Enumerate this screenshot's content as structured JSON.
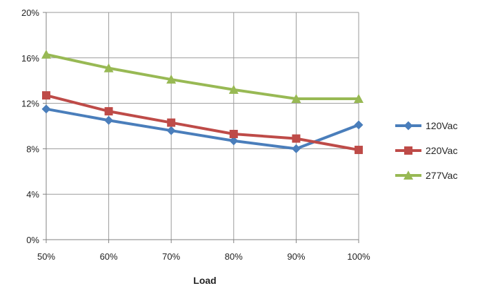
{
  "chart_data": {
    "type": "line",
    "title": "",
    "xlabel": "Load",
    "ylabel": "",
    "categories": [
      "50%",
      "60%",
      "70%",
      "80%",
      "90%",
      "100%"
    ],
    "ylim": [
      0,
      20
    ],
    "yticks": [
      0,
      4,
      8,
      12,
      16,
      20
    ],
    "ytick_labels": [
      "0%",
      "4%",
      "8%",
      "12%",
      "16%",
      "20%"
    ],
    "grid": true,
    "legend_position": "right",
    "series": [
      {
        "name": "120Vac",
        "color": "#4a7ebb",
        "marker": "diamond",
        "values": [
          11.5,
          10.5,
          9.6,
          8.7,
          8.0,
          10.1
        ]
      },
      {
        "name": "220Vac",
        "color": "#be4b48",
        "marker": "square",
        "values": [
          12.7,
          11.3,
          10.3,
          9.3,
          8.9,
          7.9
        ]
      },
      {
        "name": "277Vac",
        "color": "#98b954",
        "marker": "triangle",
        "values": [
          16.3,
          15.1,
          14.1,
          13.2,
          12.4,
          12.4
        ]
      }
    ]
  }
}
